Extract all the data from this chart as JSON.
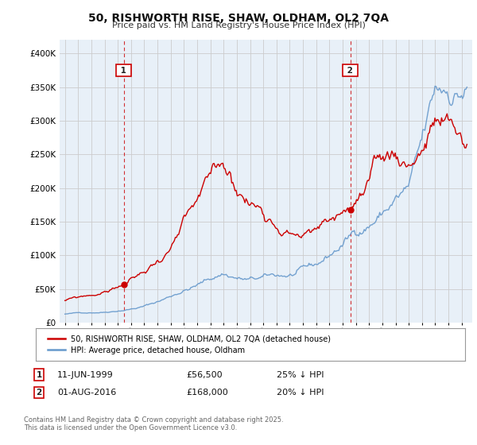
{
  "title": "50, RISHWORTH RISE, SHAW, OLDHAM, OL2 7QA",
  "subtitle": "Price paid vs. HM Land Registry's House Price Index (HPI)",
  "ylim": [
    0,
    420000
  ],
  "yticks": [
    0,
    50000,
    100000,
    150000,
    200000,
    250000,
    300000,
    350000,
    400000
  ],
  "ytick_labels": [
    "£0",
    "£50K",
    "£100K",
    "£150K",
    "£200K",
    "£250K",
    "£300K",
    "£350K",
    "£400K"
  ],
  "red_color": "#cc0000",
  "blue_color": "#6699cc",
  "vline_color": "#cc0000",
  "bg_color": "#e8f0f8",
  "grid_color": "#cccccc",
  "marker1_date": 1999.44,
  "marker2_date": 2016.58,
  "legend_line1": "50, RISHWORTH RISE, SHAW, OLDHAM, OL2 7QA (detached house)",
  "legend_line2": "HPI: Average price, detached house, Oldham",
  "annotation1_date": "11-JUN-1999",
  "annotation1_price": "£56,500",
  "annotation1_hpi": "25% ↓ HPI",
  "annotation2_date": "01-AUG-2016",
  "annotation2_price": "£168,000",
  "annotation2_hpi": "20% ↓ HPI",
  "footnote": "Contains HM Land Registry data © Crown copyright and database right 2025.\nThis data is licensed under the Open Government Licence v3.0."
}
